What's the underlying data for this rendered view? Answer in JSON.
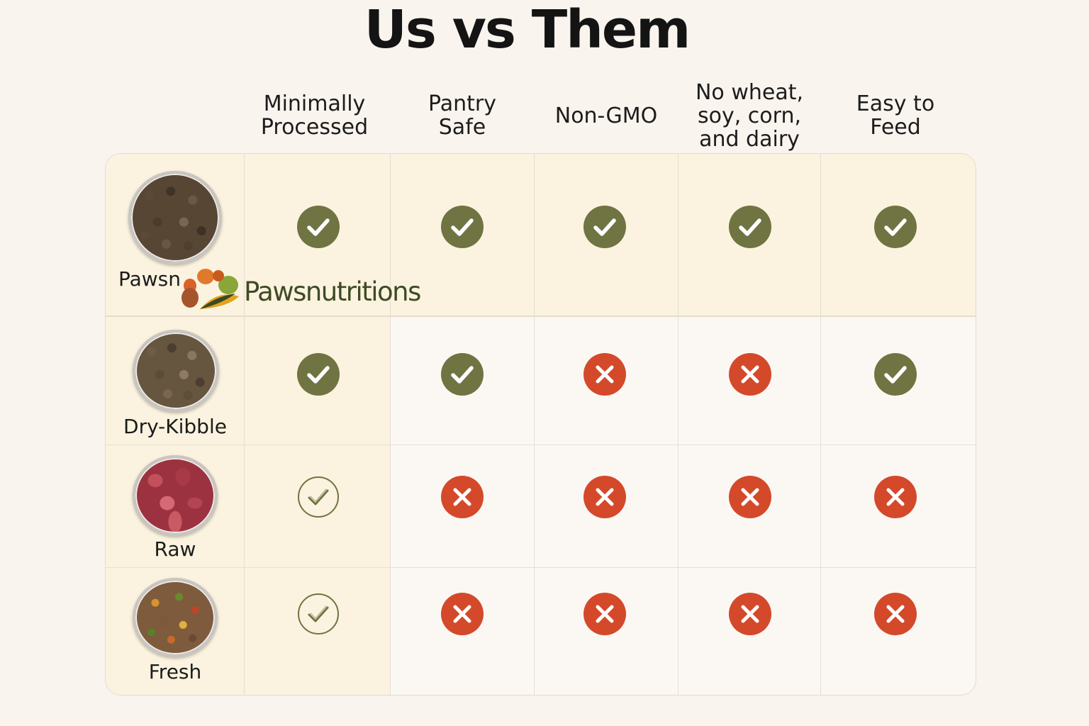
{
  "title": "Us vs Them",
  "columns": [
    "Minimally\nProcessed",
    "Pantry\nSafe",
    "Non-GMO",
    "No wheat,\nsoy, corn,\nand dairy",
    "Easy to\nFeed"
  ],
  "rows": [
    {
      "label": "Pawsn",
      "food_icon": "kibble-bowl-icon",
      "values": [
        "check",
        "check",
        "check",
        "check",
        "check"
      ]
    },
    {
      "label": "Dry-Kibble",
      "food_icon": "kibble-bowl-icon",
      "values": [
        "check",
        "check",
        "cross",
        "cross",
        "check"
      ]
    },
    {
      "label": "Raw",
      "food_icon": "raw-meat-bowl-icon",
      "values": [
        "check-outline",
        "cross",
        "cross",
        "cross",
        "cross"
      ]
    },
    {
      "label": "Fresh",
      "food_icon": "fresh-food-bowl-icon",
      "values": [
        "check-outline",
        "cross",
        "cross",
        "cross",
        "cross"
      ]
    }
  ],
  "logo": {
    "text": "Pawsnutritions"
  },
  "colors": {
    "check": "#6f7442",
    "cross": "#d4492a",
    "highlight_row": "#fbf3df",
    "page_background": "#faf4ee"
  }
}
